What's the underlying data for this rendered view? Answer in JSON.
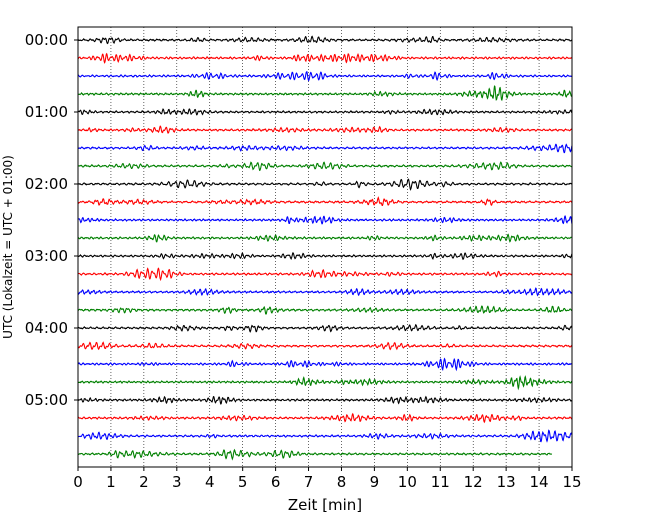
{
  "chart_data": {
    "type": "line",
    "title": "",
    "xlabel": "Zeit  [min]",
    "ylabel": "UTC (Lokalzeit = UTC + 01:00)",
    "xlim": [
      0,
      15
    ],
    "xticks": [
      0,
      1,
      2,
      3,
      4,
      5,
      6,
      7,
      8,
      9,
      10,
      11,
      12,
      13,
      14,
      15
    ],
    "vertical_grid": "dotted, at every x tick",
    "y_tick_labels": [
      "00:00",
      "01:00",
      "02:00",
      "03:00",
      "04:00",
      "05:00"
    ],
    "trace_interval_min": 15,
    "colors": [
      "#000000",
      "#ff0000",
      "#0000ff",
      "#008000"
    ],
    "traces": [
      {
        "start": "00:00",
        "color": "#000000",
        "x_end": 15
      },
      {
        "start": "00:15",
        "color": "#ff0000",
        "x_end": 15
      },
      {
        "start": "00:30",
        "color": "#0000ff",
        "x_end": 15
      },
      {
        "start": "00:45",
        "color": "#008000",
        "x_end": 15
      },
      {
        "start": "01:00",
        "color": "#000000",
        "x_end": 15
      },
      {
        "start": "01:15",
        "color": "#ff0000",
        "x_end": 15
      },
      {
        "start": "01:30",
        "color": "#0000ff",
        "x_end": 15
      },
      {
        "start": "01:45",
        "color": "#008000",
        "x_end": 15
      },
      {
        "start": "02:00",
        "color": "#000000",
        "x_end": 15
      },
      {
        "start": "02:15",
        "color": "#ff0000",
        "x_end": 15
      },
      {
        "start": "02:30",
        "color": "#0000ff",
        "x_end": 15
      },
      {
        "start": "02:45",
        "color": "#008000",
        "x_end": 15
      },
      {
        "start": "03:00",
        "color": "#000000",
        "x_end": 15
      },
      {
        "start": "03:15",
        "color": "#ff0000",
        "x_end": 15
      },
      {
        "start": "03:30",
        "color": "#0000ff",
        "x_end": 15
      },
      {
        "start": "03:45",
        "color": "#008000",
        "x_end": 15
      },
      {
        "start": "04:00",
        "color": "#000000",
        "x_end": 15
      },
      {
        "start": "04:15",
        "color": "#ff0000",
        "x_end": 15
      },
      {
        "start": "04:30",
        "color": "#0000ff",
        "x_end": 15
      },
      {
        "start": "04:45",
        "color": "#008000",
        "x_end": 15
      },
      {
        "start": "05:00",
        "color": "#000000",
        "x_end": 15
      },
      {
        "start": "05:15",
        "color": "#ff0000",
        "x_end": 15
      },
      {
        "start": "05:30",
        "color": "#0000ff",
        "x_end": 15
      },
      {
        "start": "05:45",
        "color": "#008000",
        "x_end": 14.4
      }
    ]
  }
}
